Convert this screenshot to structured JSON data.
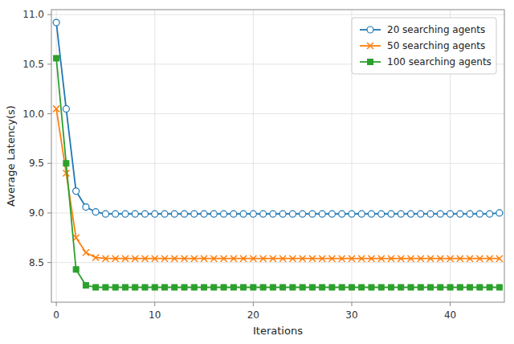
{
  "chart_data": {
    "type": "line",
    "xlabel": "Iterations",
    "ylabel": "Average Latency(s)",
    "x": [
      0,
      1,
      2,
      3,
      4,
      5,
      6,
      7,
      8,
      9,
      10,
      11,
      12,
      13,
      14,
      15,
      16,
      17,
      18,
      19,
      20,
      21,
      22,
      23,
      24,
      25,
      26,
      27,
      28,
      29,
      30,
      31,
      32,
      33,
      34,
      35,
      36,
      37,
      38,
      39,
      40,
      41,
      42,
      43,
      44,
      45
    ],
    "series": [
      {
        "name": "20 searching agents",
        "color": "#1f77b4",
        "marker": "circle",
        "values": [
          10.92,
          10.05,
          9.22,
          9.06,
          9.01,
          8.99,
          8.99,
          8.99,
          8.99,
          8.99,
          8.99,
          8.99,
          8.99,
          8.99,
          8.99,
          8.99,
          8.99,
          8.99,
          8.99,
          8.99,
          8.99,
          8.99,
          8.99,
          8.99,
          8.99,
          8.99,
          8.99,
          8.99,
          8.99,
          8.99,
          8.99,
          8.99,
          8.99,
          8.99,
          8.99,
          8.99,
          8.99,
          8.99,
          8.99,
          8.99,
          8.99,
          8.99,
          8.99,
          8.99,
          8.99,
          9.0
        ]
      },
      {
        "name": "50 searching agents",
        "color": "#ff7f0e",
        "marker": "x",
        "values": [
          10.05,
          9.4,
          8.75,
          8.6,
          8.55,
          8.54,
          8.54,
          8.54,
          8.54,
          8.54,
          8.54,
          8.54,
          8.54,
          8.54,
          8.54,
          8.54,
          8.54,
          8.54,
          8.54,
          8.54,
          8.54,
          8.54,
          8.54,
          8.54,
          8.54,
          8.54,
          8.54,
          8.54,
          8.54,
          8.54,
          8.54,
          8.54,
          8.54,
          8.54,
          8.54,
          8.54,
          8.54,
          8.54,
          8.54,
          8.54,
          8.54,
          8.54,
          8.54,
          8.54,
          8.54,
          8.54
        ]
      },
      {
        "name": "100 searching agents",
        "color": "#2ca02c",
        "marker": "square",
        "values": [
          10.56,
          9.5,
          8.43,
          8.27,
          8.25,
          8.25,
          8.25,
          8.25,
          8.25,
          8.25,
          8.25,
          8.25,
          8.25,
          8.25,
          8.25,
          8.25,
          8.25,
          8.25,
          8.25,
          8.25,
          8.25,
          8.25,
          8.25,
          8.25,
          8.25,
          8.25,
          8.25,
          8.25,
          8.25,
          8.25,
          8.25,
          8.25,
          8.25,
          8.25,
          8.25,
          8.25,
          8.25,
          8.25,
          8.25,
          8.25,
          8.25,
          8.25,
          8.25,
          8.25,
          8.25,
          8.25
        ]
      }
    ],
    "xlim": [
      -0.5,
      45.5
    ],
    "ylim": [
      8.1,
      11.05
    ],
    "xticks": [
      0,
      10,
      20,
      30,
      40
    ],
    "yticks": [
      8.5,
      {
        "value": 9.0,
        "label": "9.0"
      },
      9.5,
      {
        "value": 10.0,
        "label": "10.0"
      },
      10.5,
      {
        "value": 11.0,
        "label": "11.0"
      }
    ],
    "grid": true,
    "legend": "upper right"
  }
}
